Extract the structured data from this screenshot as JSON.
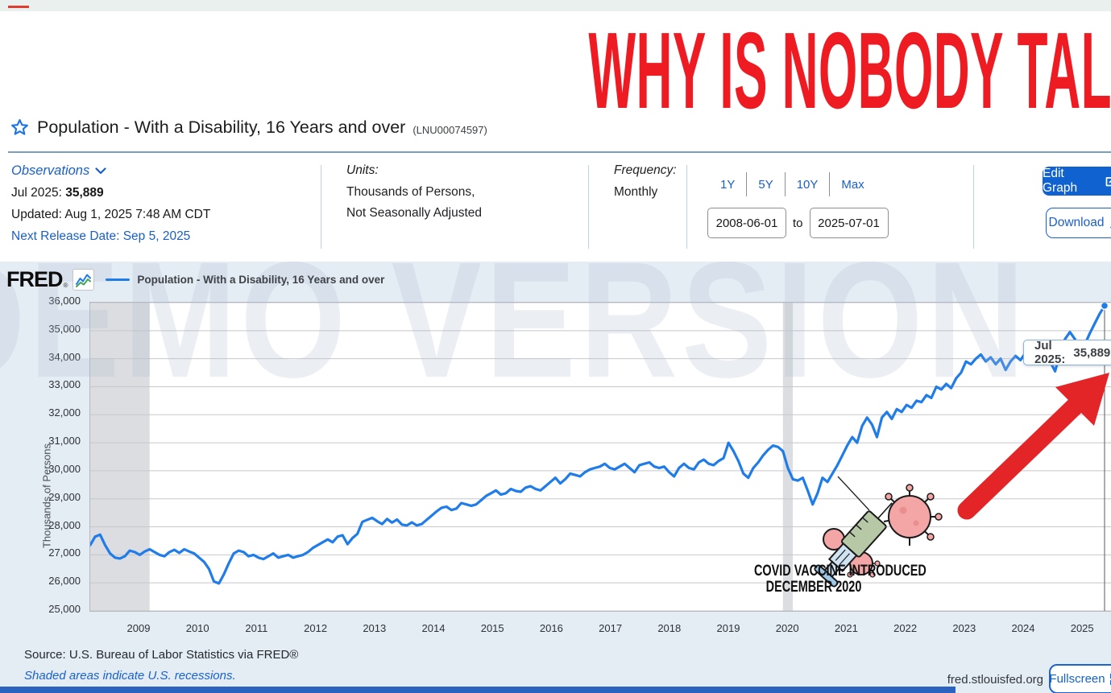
{
  "headline": "WHY IS NOBODY TALKING ABOUT THIS?",
  "title": {
    "series_title": "Population - With a Disability, 16 Years and over",
    "series_id": "(LNU00074597)"
  },
  "meta": {
    "observations_label": "Observations",
    "latest_label": "Jul 2025:",
    "latest_value": "35,889",
    "updated": "Updated: Aug 1, 2025 7:48 AM CDT",
    "next_release": "Next Release Date: Sep 5, 2025",
    "units_label": "Units:",
    "units_line1": "Thousands of Persons,",
    "units_line2": "Not Seasonally Adjusted",
    "frequency_label": "Frequency:",
    "frequency_value": "Monthly",
    "range_periods": [
      "1Y",
      "5Y",
      "10Y",
      "Max"
    ],
    "date_from": "2008-06-01",
    "date_to_word": "to",
    "date_to": "2025-07-01",
    "edit_graph_label": "Edit Graph",
    "download_label": "Download"
  },
  "chart_header": {
    "logo_text": "FRED",
    "logo_reg": "®",
    "legend_label": "Population - With a Disability, 16 Years and over"
  },
  "watermark": "DEMO VERSION",
  "tooltip": {
    "label": "Jul 2025:",
    "value": "35,889"
  },
  "annotations": {
    "covid_line1": "COVID VACCINE INTRODUCED",
    "covid_line2": "DECEMBER 2020"
  },
  "footer": {
    "source": "Source: U.S. Bureau of Labor Statistics via FRED®",
    "shaded_note": "Shaded areas indicate U.S. recessions.",
    "site": "fred.stlouisfed.org",
    "fullscreen_label": "Fullscreen"
  },
  "colors": {
    "line_blue": "#1f7ce8",
    "headline_red": "#ee1b22",
    "arrow_red": "#e42528",
    "fred_blue": "#1a5fc8",
    "recession_gray": "#dbdde1",
    "chart_bg": "#e4ecf4"
  },
  "chart_data": {
    "type": "line",
    "title": "Population - With a Disability, 16 Years and over",
    "ylabel": "Thousands of Persons",
    "ylim": [
      25000,
      36000
    ],
    "y_step": 1000,
    "x_ticks": [
      2009,
      2010,
      2011,
      2012,
      2013,
      2014,
      2015,
      2016,
      2017,
      2018,
      2019,
      2020,
      2021,
      2022,
      2023,
      2024,
      2025
    ],
    "start_month": "2008-06",
    "end_month": "2025-07",
    "recessions": [
      [
        "2008-06",
        "2009-06"
      ],
      [
        "2020-02",
        "2020-04"
      ]
    ],
    "last_observation": {
      "date": "Jul 2025",
      "value": 35889
    },
    "grid": true,
    "legend_position": "top-left",
    "values": [
      27350,
      27650,
      27720,
      27350,
      27050,
      26900,
      26870,
      26950,
      27150,
      27100,
      27000,
      27120,
      27200,
      27100,
      27000,
      26950,
      27100,
      27180,
      27070,
      27200,
      27120,
      27050,
      26900,
      26750,
      26500,
      26050,
      25980,
      26300,
      26700,
      27050,
      27150,
      27100,
      26950,
      27000,
      26900,
      26850,
      26950,
      27050,
      26900,
      26950,
      27000,
      26900,
      26950,
      27000,
      27100,
      27250,
      27350,
      27450,
      27550,
      27450,
      27650,
      27700,
      27380,
      27600,
      27750,
      28180,
      28250,
      28320,
      28200,
      28100,
      28280,
      28150,
      28260,
      28080,
      28050,
      28160,
      28050,
      28100,
      28250,
      28400,
      28550,
      28680,
      28720,
      28600,
      28650,
      28850,
      28800,
      28750,
      28800,
      28950,
      29100,
      29200,
      29300,
      29150,
      29200,
      29350,
      29280,
      29250,
      29400,
      29450,
      29350,
      29300,
      29450,
      29600,
      29750,
      29550,
      29700,
      29900,
      29850,
      29800,
      29950,
      30050,
      30100,
      30150,
      30250,
      30100,
      30050,
      30150,
      30250,
      30100,
      29950,
      30200,
      30250,
      30300,
      30150,
      30100,
      30150,
      29950,
      29800,
      30100,
      30250,
      30100,
      30050,
      30300,
      30400,
      30250,
      30200,
      30350,
      30450,
      31000,
      30700,
      30350,
      29900,
      29750,
      30100,
      30300,
      30550,
      30750,
      30900,
      30850,
      30700,
      30100,
      29700,
      29650,
      29750,
      29300,
      28800,
      29200,
      29750,
      29600,
      29900,
      30200,
      30550,
      30900,
      31200,
      31000,
      31600,
      31900,
      31650,
      31200,
      31900,
      32100,
      31850,
      32200,
      32100,
      32350,
      32250,
      32500,
      32450,
      32700,
      32600,
      33000,
      32900,
      33100,
      32950,
      33300,
      33500,
      33900,
      33800,
      34000,
      34150,
      33900,
      34050,
      33800,
      34000,
      33600,
      33900,
      34100,
      33950,
      34200,
      34100,
      34350,
      34250,
      34400,
      33900,
      33550,
      34200,
      34700,
      34950,
      34700,
      34300,
      34500,
      34900,
      35250,
      35600,
      35889
    ]
  }
}
